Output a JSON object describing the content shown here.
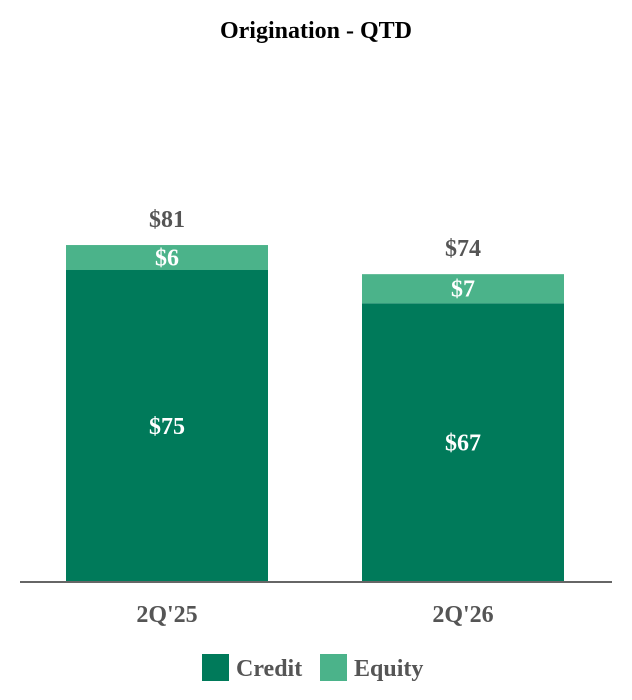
{
  "chart_data": {
    "type": "bar",
    "stacked": true,
    "title": "Origination - QTD",
    "xlabel": "",
    "ylabel": "",
    "categories": [
      "2Q'25",
      "2Q'26"
    ],
    "series": [
      {
        "name": "Credit",
        "values": [
          75,
          67
        ],
        "labels": [
          "$75",
          "$67"
        ],
        "color": "#007a5a"
      },
      {
        "name": "Equity",
        "values": [
          6,
          7
        ],
        "labels": [
          "$6",
          "$7"
        ],
        "color": "#4bb38a"
      }
    ],
    "totals": [
      81,
      74
    ],
    "total_labels": [
      "$81",
      "$74"
    ],
    "ylim": [
      0,
      90
    ],
    "grid": false,
    "legend_position": "bottom"
  }
}
